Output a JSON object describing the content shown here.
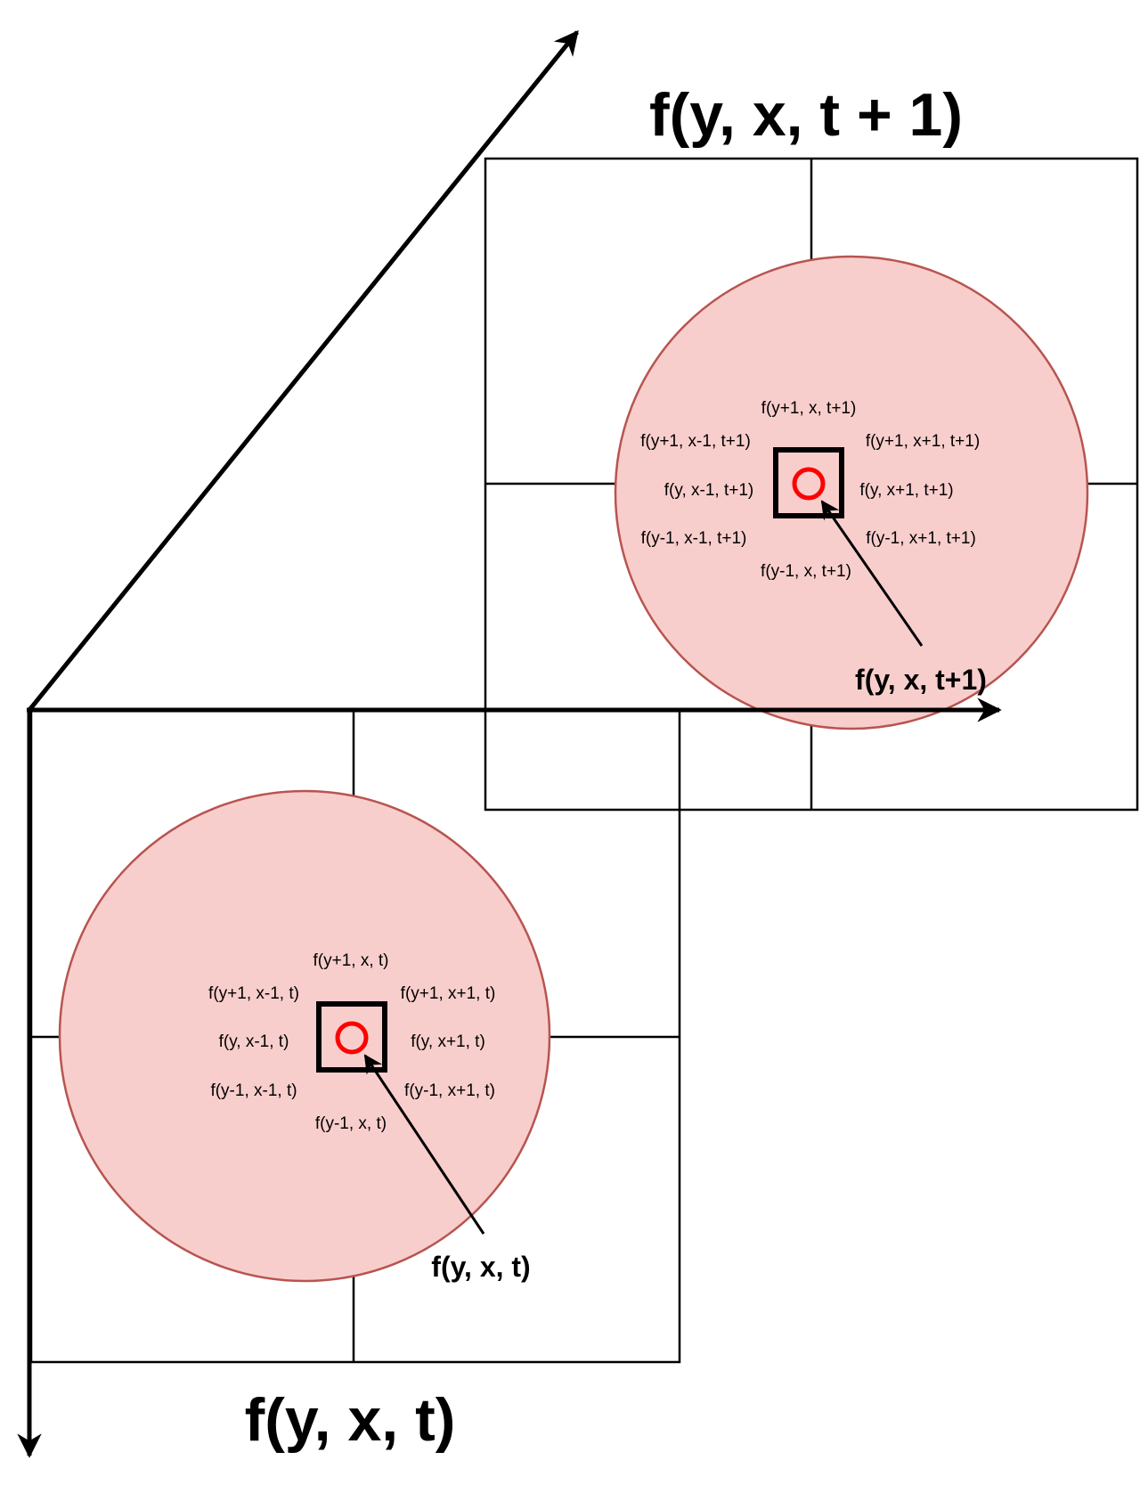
{
  "colors": {
    "disc_fill": "#f8cecc",
    "disc_stroke": "#b85450",
    "center_marker": "#ff0000",
    "lines": "#000000"
  },
  "frame_t1": {
    "title": "f(y, x, t + 1)",
    "center_label": "f(y, x, t+1)",
    "neighbors": {
      "top": "f(y+1, x, t+1)",
      "top_left": "f(y+1, x-1, t+1)",
      "top_right": "f(y+1, x+1, t+1)",
      "left": "f(y, x-1, t+1)",
      "right": "f(y, x+1, t+1)",
      "bottom_left": "f(y-1, x-1, t+1)",
      "bottom_right": "f(y-1, x+1, t+1)",
      "bottom": "f(y-1, x, t+1)"
    }
  },
  "frame_t": {
    "title": "f(y, x, t)",
    "center_label": "f(y, x, t)",
    "neighbors": {
      "top": "f(y+1, x, t)",
      "top_left": "f(y+1, x-1, t)",
      "top_right": "f(y+1, x+1, t)",
      "left": "f(y, x-1, t)",
      "right": "f(y, x+1, t)",
      "bottom_left": "f(y-1, x-1, t)",
      "bottom_right": "f(y-1, x+1, t)",
      "bottom": "f(y-1, x, t)"
    }
  }
}
